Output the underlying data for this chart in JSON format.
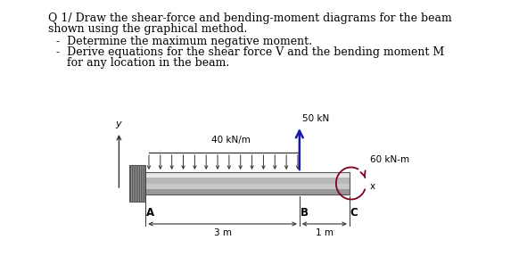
{
  "title_line1": "Q 1/ Draw the shear-force and bending-moment diagrams for the beam",
  "title_line2": "shown using the graphical method.",
  "bullet1": "Determine the maximum negative moment.",
  "bullet2a": "Derive equations for the shear force V and the bending moment M",
  "bullet2b": "for any location in the beam.",
  "label_A": "A",
  "label_B": "B",
  "label_C": "C",
  "label_dist_AB": "3 m",
  "label_dist_BC": "1 m",
  "label_load": "40 kN/m",
  "label_force": "50 kN",
  "label_moment": "60 kN-m",
  "label_y": "y",
  "label_x": "x",
  "bg_color": "#ffffff",
  "text_color": "#000000",
  "title_fontsize": 9.0,
  "label_fontsize": 7.5,
  "beam_fill": "#c8c8c8",
  "beam_top_strip": "#e8e8e8",
  "beam_mid_strip": "#b8b8b8",
  "beam_bot_strip": "#989898",
  "wall_color": "#909090",
  "arrow_color": "#333333",
  "force_color": "#1a1aaa",
  "moment_color": "#800020"
}
